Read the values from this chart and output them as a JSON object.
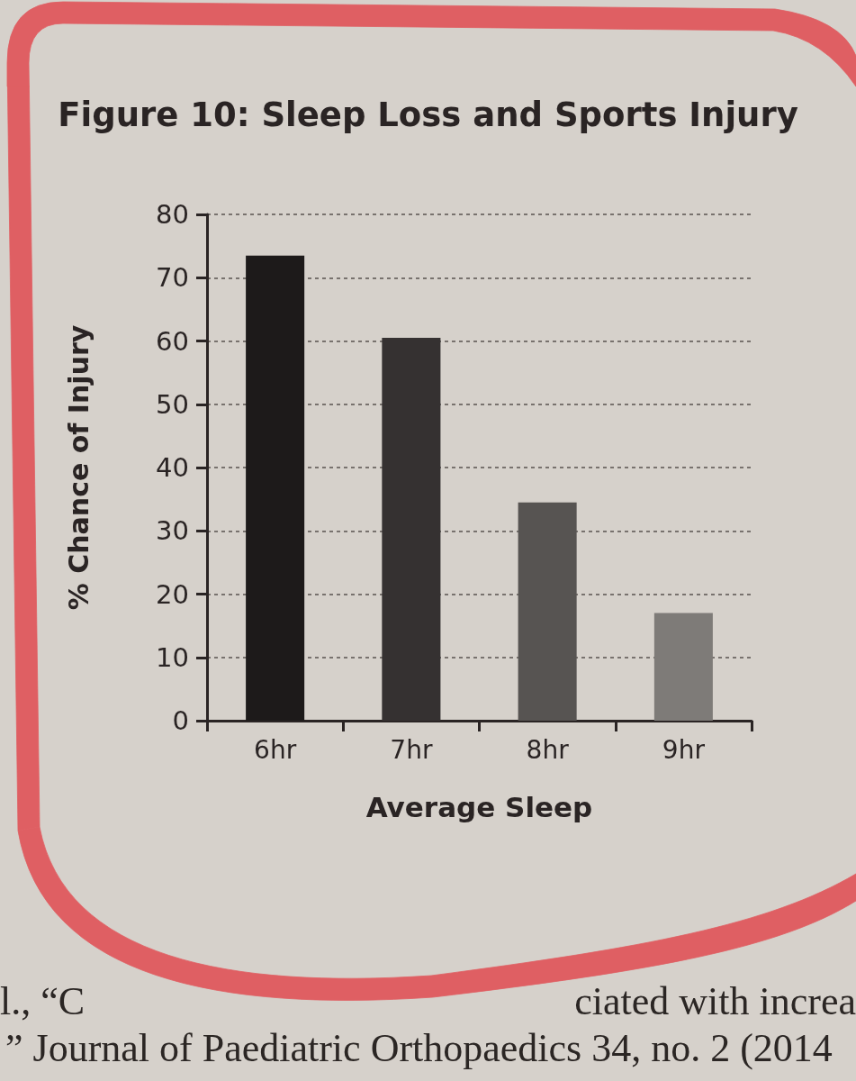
{
  "chart_data": {
    "type": "bar",
    "title": "Figure 10: Sleep Loss and Sports Injury",
    "xlabel": "Average Sleep",
    "ylabel": "% Chance of Injury",
    "categories": [
      "6hr",
      "7hr",
      "8hr",
      "9hr"
    ],
    "values": [
      73.5,
      60.5,
      34.5,
      17
    ],
    "colors": [
      "#1d1a1a",
      "#353131",
      "#575452",
      "#7e7b78"
    ],
    "ylim": [
      0,
      80
    ],
    "yticks": [
      0,
      10,
      20,
      30,
      40,
      50,
      60,
      70,
      80
    ],
    "grid": "y",
    "annotations": [
      "l., “C",
      "ciated with increa",
      "” Journal of Paediatric Orthopaedics 34, no. 2 (2014"
    ]
  }
}
